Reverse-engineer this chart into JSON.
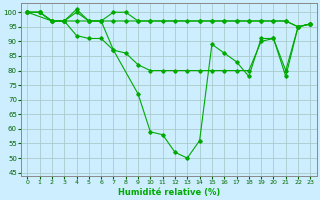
{
  "xlabel": "Humidité relative (%)",
  "background_color": "#cceeff",
  "grid_color": "#aacccc",
  "line_color": "#00aa00",
  "marker_color": "#00aa00",
  "xlim": [
    -0.5,
    23.5
  ],
  "ylim": [
    44,
    103
  ],
  "yticks": [
    45,
    50,
    55,
    60,
    65,
    70,
    75,
    80,
    85,
    90,
    95,
    100
  ],
  "xticks": [
    0,
    1,
    2,
    3,
    4,
    5,
    6,
    7,
    8,
    9,
    10,
    11,
    12,
    13,
    14,
    15,
    16,
    17,
    18,
    19,
    20,
    21,
    22,
    23
  ],
  "series": [
    {
      "x": [
        0,
        1,
        2,
        3,
        4,
        5,
        6,
        7,
        8,
        9,
        10,
        14,
        15,
        16,
        17,
        18,
        19,
        20,
        21,
        22,
        23
      ],
      "y": [
        100,
        100,
        97,
        97,
        100,
        97,
        97,
        97,
        97,
        97,
        97,
        97,
        97,
        97,
        97,
        97,
        97,
        97,
        97,
        95,
        96
      ]
    },
    {
      "x": [
        0,
        1,
        2,
        3,
        4,
        5,
        6,
        7,
        8,
        9,
        10,
        11,
        12,
        13,
        14,
        15,
        16,
        17,
        18,
        19,
        20,
        21,
        22,
        23
      ],
      "y": [
        100,
        100,
        97,
        97,
        92,
        91,
        91,
        87,
        86,
        82,
        80,
        80,
        80,
        80,
        80,
        80,
        80,
        80,
        80,
        90,
        91,
        80,
        95,
        96
      ]
    },
    {
      "x": [
        0,
        2,
        3,
        4,
        5,
        6,
        7,
        8,
        9,
        10,
        11,
        12,
        13,
        14,
        15,
        16,
        17,
        18,
        19,
        20,
        21,
        22,
        23
      ],
      "y": [
        100,
        97,
        97,
        101,
        97,
        97,
        100,
        100,
        97,
        97,
        97,
        97,
        97,
        97,
        97,
        97,
        97,
        97,
        97,
        97,
        97,
        95,
        96
      ]
    },
    {
      "x": [
        0,
        1,
        2,
        3,
        4,
        5,
        6,
        7,
        9,
        10,
        11,
        12,
        13,
        14,
        15,
        16,
        17,
        18,
        19,
        20,
        21,
        22,
        23
      ],
      "y": [
        100,
        100,
        97,
        97,
        97,
        97,
        97,
        87,
        72,
        59,
        58,
        52,
        50,
        56,
        89,
        86,
        83,
        78,
        91,
        91,
        78,
        95,
        96
      ]
    }
  ]
}
